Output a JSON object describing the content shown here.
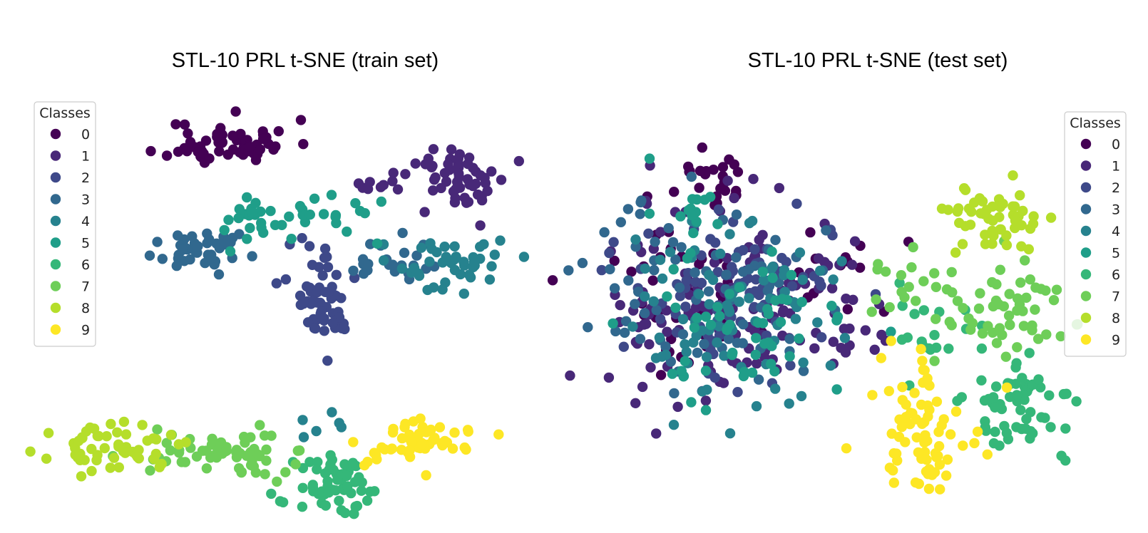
{
  "palette": [
    "#440154",
    "#482878",
    "#3e4989",
    "#31688e",
    "#26828e",
    "#1f9e89",
    "#35b779",
    "#6ece58",
    "#b5de2b",
    "#fde725"
  ],
  "chart_data": [
    {
      "type": "scatter",
      "title": "STL-10 PRL t-SNE (train set)",
      "xlabel": "",
      "ylabel": "",
      "xlim": [
        0,
        100
      ],
      "ylim": [
        0,
        100
      ],
      "axes_visible": false,
      "legend": {
        "title": "Classes",
        "position": "upper-left",
        "labels": [
          "0",
          "1",
          "2",
          "3",
          "4",
          "5",
          "6",
          "7",
          "8",
          "9"
        ]
      },
      "series": [
        {
          "name": "0",
          "clusters": [
            {
              "c": [
                39,
                90
              ],
              "s": [
                6.5,
                3.2
              ],
              "n": 60,
              "seed": 11
            }
          ]
        },
        {
          "name": "1",
          "clusters": [
            {
              "c": [
                88,
                80
              ],
              "s": [
                5.5,
                4.2
              ],
              "n": 55,
              "seed": 12
            },
            {
              "c": [
                71,
                78
              ],
              "s": [
                3,
                1.5
              ],
              "n": 8,
              "seed": 13
            }
          ]
        },
        {
          "name": "2",
          "clusters": [
            {
              "c": [
                60,
                45
              ],
              "s": [
                3.8,
                4.8
              ],
              "n": 50,
              "seed": 14
            },
            {
              "c": [
                58,
                60
              ],
              "s": [
                2,
                3.5
              ],
              "n": 8,
              "seed": 15
            }
          ]
        },
        {
          "name": "3",
          "clusters": [
            {
              "c": [
                33,
                60
              ],
              "s": [
                5,
                2.6
              ],
              "n": 42,
              "seed": 16
            },
            {
              "c": [
                74,
                57
              ],
              "s": [
                5,
                3
              ],
              "n": 22,
              "seed": 17
            }
          ]
        },
        {
          "name": "4",
          "clusters": [
            {
              "c": [
                85,
                56
              ],
              "s": [
                6,
                4
              ],
              "n": 42,
              "seed": 18
            },
            {
              "c": [
                57,
                13
              ],
              "s": [
                3,
                2
              ],
              "n": 6,
              "seed": 19
            }
          ]
        },
        {
          "name": "5",
          "clusters": [
            {
              "c": [
                51,
                69
              ],
              "s": [
                9,
                3.8
              ],
              "n": 40,
              "seed": 20
            }
          ]
        },
        {
          "name": "6",
          "clusters": [
            {
              "c": [
                62,
                -6
              ],
              "s": [
                4.6,
                4.2
              ],
              "n": 58,
              "seed": 21
            }
          ]
        },
        {
          "name": "7",
          "clusters": [
            {
              "c": [
                37,
                4
              ],
              "s": [
                7.5,
                3
              ],
              "n": 60,
              "seed": 22
            }
          ]
        },
        {
          "name": "8",
          "clusters": [
            {
              "c": [
                15,
                5
              ],
              "s": [
                6.5,
                3
              ],
              "n": 55,
              "seed": 23
            }
          ]
        },
        {
          "name": "9",
          "clusters": [
            {
              "c": [
                77,
                6
              ],
              "s": [
                6,
                3.6
              ],
              "n": 55,
              "seed": 24
            }
          ]
        }
      ]
    },
    {
      "type": "scatter",
      "title": "STL-10 PRL t-SNE (test set)",
      "xlabel": "",
      "ylabel": "",
      "xlim": [
        0,
        100
      ],
      "ylim": [
        0,
        100
      ],
      "axes_visible": false,
      "legend": {
        "title": "Classes",
        "position": "upper-right",
        "labels": [
          "0",
          "1",
          "2",
          "3",
          "4",
          "5",
          "6",
          "7",
          "8",
          "9"
        ]
      },
      "series": [
        {
          "name": "0",
          "clusters": [
            {
              "c": [
                20,
                83
              ],
              "s": [
                3.8,
                4
              ],
              "n": 22,
              "seed": 31
            },
            {
              "c": [
                15,
                55
              ],
              "s": [
                10,
                12
              ],
              "n": 42,
              "seed": 32
            },
            {
              "c": [
                50,
                53
              ],
              "s": [
                6,
                8
              ],
              "n": 12,
              "seed": 33
            }
          ]
        },
        {
          "name": "1",
          "clusters": [
            {
              "c": [
                22,
                48
              ],
              "s": [
                14,
                15
              ],
              "n": 130,
              "seed": 34
            },
            {
              "c": [
                48,
                41
              ],
              "s": [
                7,
                12
              ],
              "n": 20,
              "seed": 35
            }
          ]
        },
        {
          "name": "2",
          "clusters": [
            {
              "c": [
                25,
                53
              ],
              "s": [
                11,
                12
              ],
              "n": 90,
              "seed": 36
            }
          ]
        },
        {
          "name": "3",
          "clusters": [
            {
              "c": [
                19,
                52
              ],
              "s": [
                12,
                13
              ],
              "n": 80,
              "seed": 37
            }
          ]
        },
        {
          "name": "4",
          "clusters": [
            {
              "c": [
                24,
                48
              ],
              "s": [
                12,
                13
              ],
              "n": 80,
              "seed": 38
            }
          ]
        },
        {
          "name": "5",
          "clusters": [
            {
              "c": [
                26,
                45
              ],
              "s": [
                11,
                12
              ],
              "n": 60,
              "seed": 39
            },
            {
              "c": [
                15,
                74
              ],
              "s": [
                3,
                3
              ],
              "n": 10,
              "seed": 40
            }
          ]
        },
        {
          "name": "6",
          "clusters": [
            {
              "c": [
                87,
                20
              ],
              "s": [
                6,
                6
              ],
              "n": 60,
              "seed": 41
            },
            {
              "c": [
                64,
                40
              ],
              "s": [
                7,
                7
              ],
              "n": 20,
              "seed": 42
            }
          ]
        },
        {
          "name": "7",
          "clusters": [
            {
              "c": [
                80,
                47
              ],
              "s": [
                8,
                8
              ],
              "n": 55,
              "seed": 43
            },
            {
              "c": [
                62,
                52
              ],
              "s": [
                8,
                5
              ],
              "n": 18,
              "seed": 44
            }
          ]
        },
        {
          "name": "8",
          "clusters": [
            {
              "c": [
                79,
                72
              ],
              "s": [
                5,
                4.5
              ],
              "n": 52,
              "seed": 45
            }
          ]
        },
        {
          "name": "9",
          "clusters": [
            {
              "c": [
                65,
                10
              ],
              "s": [
                4.5,
                7
              ],
              "n": 60,
              "seed": 46
            },
            {
              "c": [
                60,
                27
              ],
              "s": [
                7,
                6
              ],
              "n": 18,
              "seed": 47
            }
          ]
        }
      ]
    }
  ]
}
